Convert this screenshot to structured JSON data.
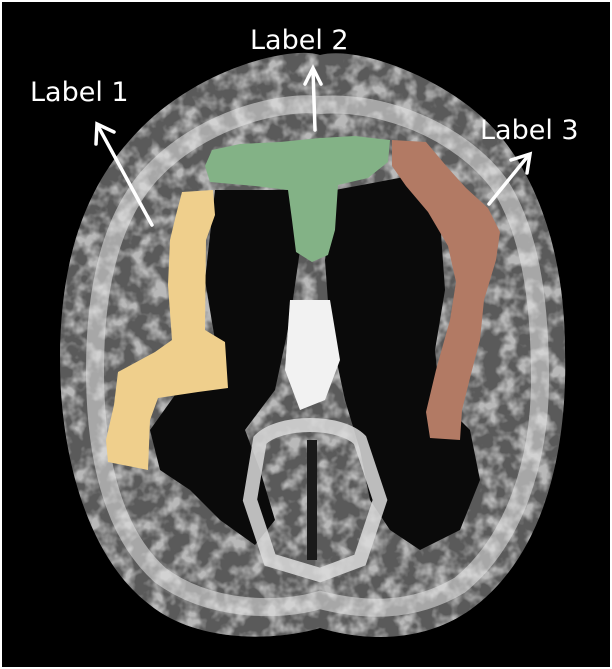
{
  "labels": [
    {
      "text": "Label 1",
      "color": "#ffffff"
    },
    {
      "text": "Label 2",
      "color": "#ffffff"
    },
    {
      "text": "Label 3",
      "color": "#ffffff"
    }
  ],
  "colors": {
    "background": "#000000",
    "border": "#ffffff",
    "region_1": "#efcf8c",
    "region_2": "#83b286",
    "region_3": "#b27a64",
    "arrow": "#ffffff"
  }
}
